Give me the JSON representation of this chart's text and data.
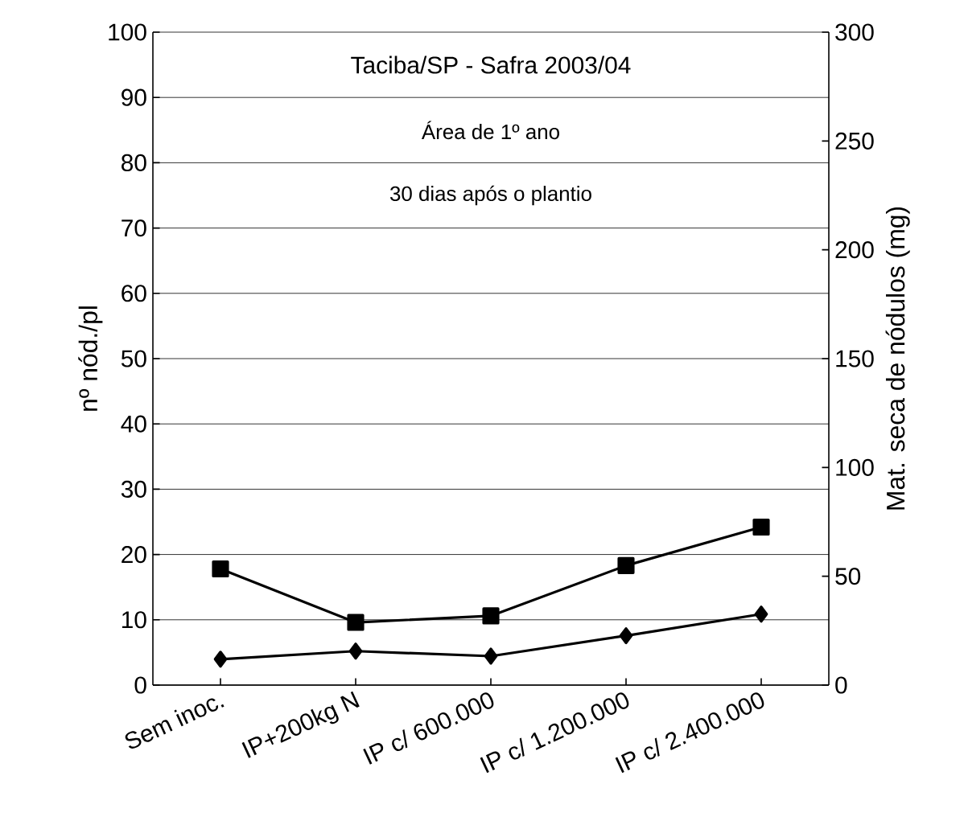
{
  "chart_data": {
    "type": "line",
    "title": "Taciba/SP - Safra 2003/04",
    "subtitle": "Área de 1º ano",
    "annotations": [
      "30 dias após o plantio"
    ],
    "ylabel": "nº nód./pl",
    "y2label": "Mat. seca de nódulos (mg)",
    "categories": [
      "Sem inoc.",
      "IP+200kg N",
      "IP c/ 600.000",
      "IP c/ 1.200.000",
      "IP c/ 2.400.000"
    ],
    "series": [
      {
        "color": "#000000",
        "marker": "square",
        "values": [
          17.8,
          9.6,
          10.6,
          18.3,
          24.2
        ]
      },
      {
        "color": "#000000",
        "marker": "diamond",
        "axis": "y2",
        "values": [
          11.9,
          15.6,
          13.3,
          22.7,
          32.6
        ]
      }
    ],
    "ylim": [
      0,
      100
    ],
    "yticks": [
      0,
      10,
      20,
      30,
      40,
      50,
      60,
      70,
      80,
      90,
      100
    ],
    "y2lim": [
      0,
      300
    ],
    "y2ticks": [
      0,
      50,
      100,
      150,
      200,
      250,
      300
    ],
    "grid": "y",
    "line_style": "solid"
  }
}
